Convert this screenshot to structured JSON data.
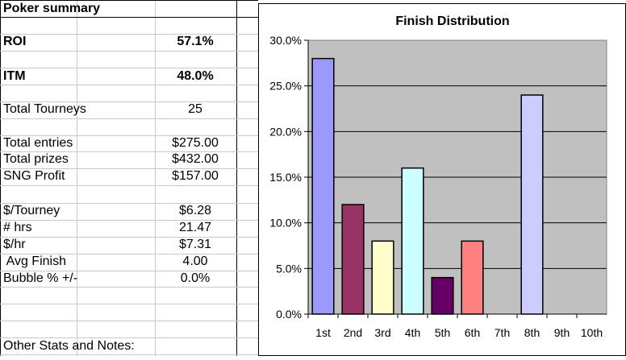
{
  "sheet": {
    "title": "Poker summary",
    "rows": [
      {
        "label": "ROI",
        "value": "57.1%",
        "bold": true
      },
      {
        "label": "ITM",
        "value": "48.0%",
        "bold": true
      },
      {
        "label": "Total Tourneys",
        "value": "25"
      },
      {
        "label": "Total entries",
        "value": "$275.00"
      },
      {
        "label": "Total prizes",
        "value": "$432.00"
      },
      {
        "label": "SNG Profit",
        "value": "$157.00"
      },
      {
        "label": "$/Tourney",
        "value": "$6.28"
      },
      {
        "label": "# hrs",
        "value": "21.47"
      },
      {
        "label": "$/hr",
        "value": "$7.31"
      },
      {
        "label": " Avg Finish",
        "value": "4.00"
      },
      {
        "label": "Bubble % +/-",
        "value": "0.0%"
      }
    ],
    "notes_label": "Other Stats and Notes:"
  },
  "chart_data": {
    "type": "bar",
    "title": "Finish Distribution",
    "categories": [
      "1st",
      "2nd",
      "3rd",
      "4th",
      "5th",
      "6th",
      "7th",
      "8th",
      "9th",
      "10th"
    ],
    "values": [
      28,
      12,
      8,
      16,
      4,
      8,
      0,
      24,
      0,
      0
    ],
    "colors": [
      "#9999ff",
      "#993366",
      "#ffffcc",
      "#ccffff",
      "#660066",
      "#ff8080",
      "#0066cc",
      "#ccccff",
      "#000080",
      "#ff00ff"
    ],
    "ylim": [
      0,
      30
    ],
    "yticks": [
      "0.0%",
      "5.0%",
      "10.0%",
      "15.0%",
      "20.0%",
      "25.0%",
      "30.0%"
    ],
    "plot_background": "#c0c0c0",
    "grid": true,
    "legend": "none"
  }
}
